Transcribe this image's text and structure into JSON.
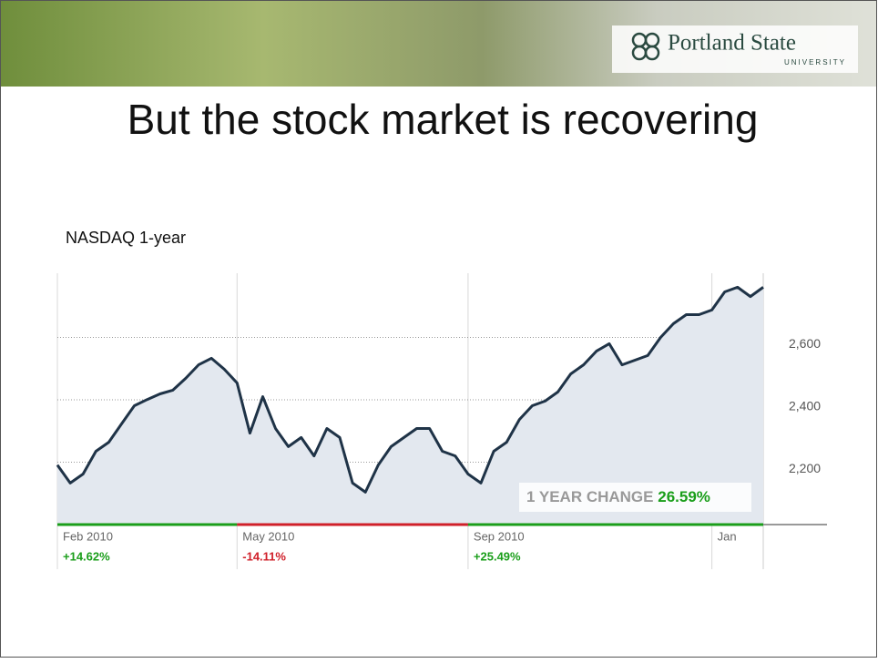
{
  "slide": {
    "logo": "Portland State",
    "logo_sub": "UNIVERSITY",
    "title": "But the stock market is recovering",
    "caption": "NASDAQ 1-year"
  },
  "chart_data": {
    "type": "line",
    "categories": [
      "Feb 2010",
      null,
      null,
      null,
      null,
      null,
      null,
      null,
      null,
      null,
      null,
      null,
      null,
      null,
      "May 2010",
      null,
      null,
      null,
      null,
      null,
      null,
      null,
      null,
      null,
      null,
      null,
      null,
      null,
      null,
      null,
      null,
      null,
      "Sep 2010",
      null,
      null,
      null,
      null,
      null,
      null,
      null,
      null,
      null,
      null,
      null,
      null,
      null,
      null,
      null,
      null,
      null,
      null,
      "Jan",
      null,
      null,
      null,
      null
    ],
    "series": [
      {
        "color": "#1f3347",
        "values": [
          2191,
          2133,
          2162,
          2235,
          2264,
          2323,
          2381,
          2401,
          2419,
          2431,
          2469,
          2512,
          2533,
          2498,
          2454,
          2293,
          2410,
          2308,
          2250,
          2279,
          2220,
          2308,
          2279,
          2133,
          2104,
          2191,
          2250,
          2279,
          2308,
          2308,
          2235,
          2220,
          2162,
          2133,
          2235,
          2264,
          2337,
          2381,
          2396,
          2425,
          2483,
          2512,
          2556,
          2580,
          2512,
          2527,
          2542,
          2600,
          2644,
          2673,
          2673,
          2688,
          2746,
          2761,
          2731,
          2761
        ]
      }
    ],
    "ylim": [
      2000,
      2800
    ],
    "yticks": [
      {
        "value": 2200,
        "label": "2,200"
      },
      {
        "value": 2400,
        "label": "2,400"
      },
      {
        "value": 2600,
        "label": "2,600"
      }
    ],
    "grid": true,
    "period_changes": [
      {
        "change": "+14.62%",
        "color": "#1a9e1a"
      },
      {
        "change": "-14.11%",
        "color": "#d0202a"
      },
      {
        "change": "+25.49%",
        "color": "#1a9e1a"
      }
    ],
    "summary": {
      "text": "1 YEAR CHANGE",
      "value": "26.59%",
      "color": "#1a9e1a"
    }
  }
}
